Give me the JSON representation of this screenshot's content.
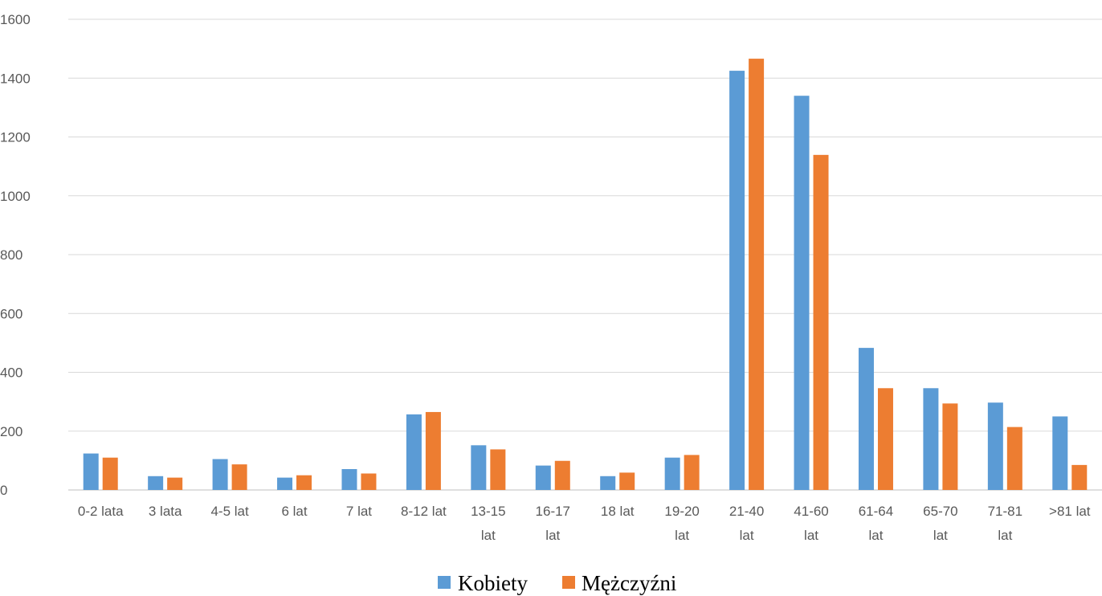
{
  "chart_data": {
    "type": "bar",
    "categories": [
      [
        "0-2 lata"
      ],
      [
        "3 lata"
      ],
      [
        "4-5 lat"
      ],
      [
        "6 lat"
      ],
      [
        "7 lat"
      ],
      [
        "8-12 lat"
      ],
      [
        "13-15",
        "lat"
      ],
      [
        "16-17",
        "lat"
      ],
      [
        "18 lat"
      ],
      [
        "19-20",
        "lat"
      ],
      [
        "21-40",
        "lat"
      ],
      [
        "41-60",
        "lat"
      ],
      [
        "61-64",
        "lat"
      ],
      [
        "65-70",
        "lat"
      ],
      [
        "71-81",
        "lat"
      ],
      [
        ">81 lat"
      ]
    ],
    "series": [
      {
        "name": "Kobiety",
        "color": "#5B9BD5",
        "values": [
          124,
          47,
          105,
          42,
          71,
          257,
          152,
          83,
          47,
          110,
          1425,
          1340,
          483,
          346,
          297,
          250
        ]
      },
      {
        "name": "Mężczyźni",
        "color": "#ED7D31",
        "values": [
          110,
          42,
          87,
          50,
          56,
          265,
          138,
          99,
          59,
          119,
          1466,
          1139,
          346,
          294,
          214,
          85
        ]
      }
    ],
    "yticks": [
      "0",
      "200",
      "400",
      "600",
      "800",
      "1000",
      "1200",
      "1400",
      "1600"
    ],
    "ylim": [
      0,
      1600
    ],
    "grid": true,
    "legend_position": "bottom"
  }
}
